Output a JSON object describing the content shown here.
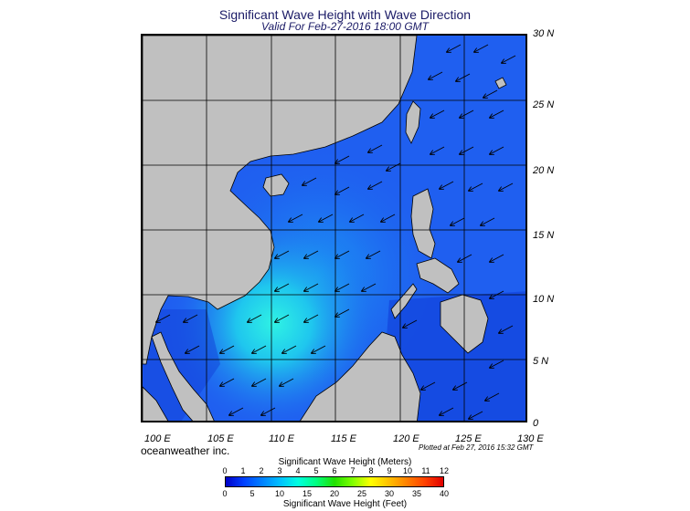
{
  "header": {
    "title": "Significant Wave Height with Wave Direction",
    "subtitle": "Valid For Feb-27-2016 18:00 GMT"
  },
  "map": {
    "lon_range": [
      100,
      130
    ],
    "lat_range": [
      0,
      30
    ],
    "lat_labels": [
      "30 N",
      "25 N",
      "20 N",
      "15 N",
      "10 N",
      "5 N",
      "0"
    ],
    "lon_labels": [
      "100 E",
      "105 E",
      "110 E",
      "115 E",
      "120 E",
      "125 E",
      "130 E"
    ],
    "land_color": "#c0c0c0",
    "sea_color": "#1f5ff0",
    "predominant_wave_direction": "from northeast toward southwest"
  },
  "footer": {
    "brand": "oceanweather inc.",
    "plotted": "Plotted at Feb 27, 2016 15:32 GMT"
  },
  "legend": {
    "title_meters": "Significant Wave Height (Meters)",
    "title_feet": "Significant Wave Height (Feet)",
    "meters_ticks": [
      "0",
      "1",
      "2",
      "3",
      "4",
      "5",
      "6",
      "7",
      "8",
      "9",
      "10",
      "11",
      "12"
    ],
    "feet_ticks": [
      "0",
      "5",
      "10",
      "15",
      "20",
      "25",
      "30",
      "35",
      "40"
    ],
    "colors": [
      "#0000c8",
      "#0040ff",
      "#0080ff",
      "#00c0ff",
      "#00ffe0",
      "#00ff80",
      "#20e000",
      "#80ff00",
      "#ffff00",
      "#ffc000",
      "#ff8000",
      "#ff4000",
      "#e00000"
    ]
  }
}
